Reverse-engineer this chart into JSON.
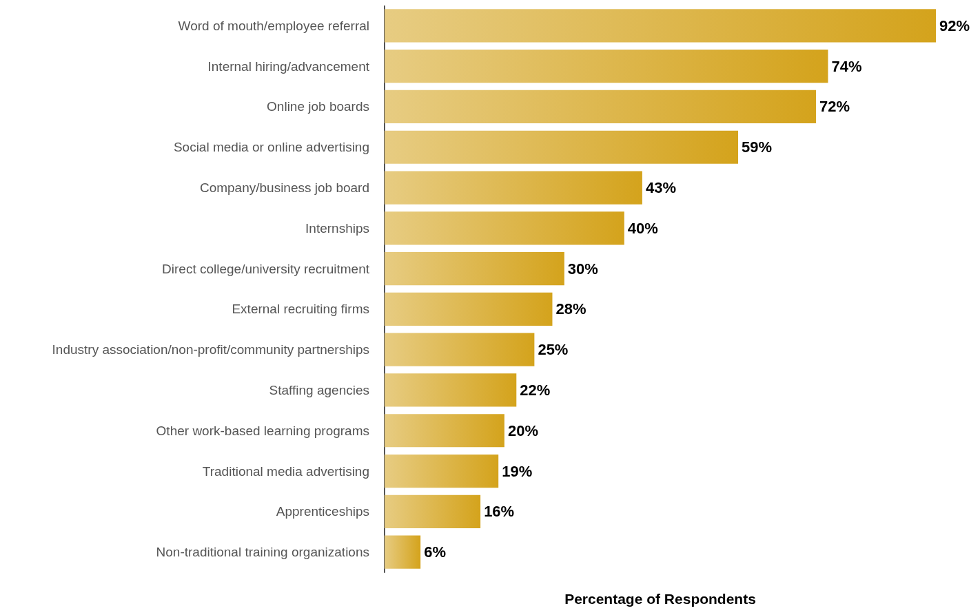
{
  "chart_data": {
    "type": "bar",
    "orientation": "horizontal",
    "xlabel": "Percentage of Respondents",
    "categories": [
      "Word of mouth/employee referral",
      "Internal hiring/advancement",
      "Online job boards",
      "Social media or online advertising",
      "Company/business job board",
      "Internships",
      "Direct college/university recruitment",
      "External recruiting firms",
      "Industry association/non-profit/community partnerships",
      "Staffing agencies",
      "Other work-based learning programs",
      "Traditional media advertising",
      "Apprenticeships",
      "Non-traditional training organizations"
    ],
    "values": [
      92,
      74,
      72,
      59,
      43,
      40,
      30,
      28,
      25,
      22,
      20,
      19,
      16,
      6
    ],
    "value_labels": [
      "92%",
      "74%",
      "72%",
      "59%",
      "43%",
      "40%",
      "30%",
      "28%",
      "25%",
      "22%",
      "20%",
      "19%",
      "16%",
      "6%"
    ],
    "color": "#d4a31c",
    "grid": false
  }
}
